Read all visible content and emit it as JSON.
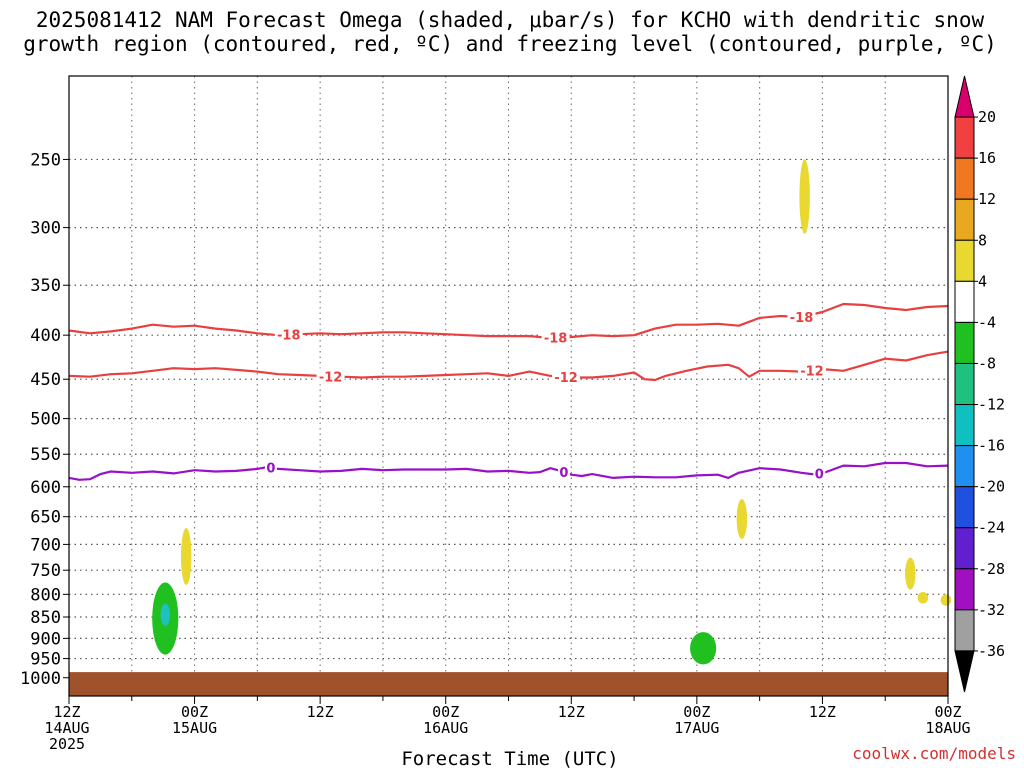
{
  "title": {
    "line1": "2025081412 NAM Forecast Omega (shaded, μbar/s) for KCHO with dendritic snow",
    "line2": "growth region (contoured, red, ºC) and freezing level (contoured, purple, ºC)"
  },
  "credit": "coolwx.com/models",
  "chart_data": {
    "type": "area",
    "title": "2025081412 NAM Forecast Omega (shaded, μbar/s) for KCHO with dendritic snow growth region (contoured, red, ºC) and freezing level (contoured, purple, ºC)",
    "xlabel": "Forecast Time (UTC)",
    "ylabel": "",
    "y_axis": {
      "scale": "log",
      "inverted": true,
      "ylim": [
        200,
        1050
      ],
      "ticks": [
        250,
        300,
        350,
        400,
        450,
        500,
        550,
        600,
        650,
        700,
        750,
        800,
        850,
        900,
        950,
        1000
      ]
    },
    "x_axis": {
      "units": "forecast hours",
      "xlim": [
        0,
        84
      ],
      "ticks": [
        {
          "hour": 0,
          "lines": [
            "12Z",
            "14AUG",
            "2025"
          ]
        },
        {
          "hour": 12,
          "lines": [
            "00Z",
            "15AUG"
          ]
        },
        {
          "hour": 24,
          "lines": [
            "12Z"
          ]
        },
        {
          "hour": 36,
          "lines": [
            "00Z",
            "16AUG"
          ]
        },
        {
          "hour": 48,
          "lines": [
            "12Z"
          ]
        },
        {
          "hour": 60,
          "lines": [
            "00Z",
            "17AUG"
          ]
        },
        {
          "hour": 72,
          "lines": [
            "12Z"
          ]
        },
        {
          "hour": 84,
          "lines": [
            "00Z",
            "18AUG"
          ]
        }
      ],
      "minor_grid_every": 6
    },
    "grid": true,
    "colorbar": {
      "labels": [
        "20",
        "16",
        "12",
        "8",
        "4",
        "-4",
        "-8",
        "-12",
        "-16",
        "-20",
        "-24",
        "-28",
        "-32",
        "-36"
      ],
      "colors": [
        "#d9006e",
        "#f04040",
        "#f07820",
        "#e8a820",
        "#e8d830",
        "#ffffff",
        "#20c020",
        "#20c080",
        "#10c0c0",
        "#2090f0",
        "#2050e0",
        "#6020d0",
        "#a010c0",
        "#a0a0a0",
        "#000000"
      ]
    },
    "contours": [
      {
        "name": "-18",
        "color": "#e84040",
        "labels": [
          {
            "text": "-18",
            "x": 21
          },
          {
            "text": "-18",
            "x": 46.5
          },
          {
            "text": "-18",
            "x": 70
          }
        ],
        "points": [
          [
            0,
            395
          ],
          [
            2,
            398
          ],
          [
            4,
            396
          ],
          [
            6,
            393
          ],
          [
            8,
            389
          ],
          [
            10,
            391
          ],
          [
            12,
            390
          ],
          [
            14,
            393
          ],
          [
            16,
            395
          ],
          [
            18,
            398
          ],
          [
            20,
            400
          ],
          [
            22,
            399
          ],
          [
            24,
            398
          ],
          [
            26,
            399
          ],
          [
            28,
            398
          ],
          [
            30,
            397
          ],
          [
            32,
            397
          ],
          [
            34,
            398
          ],
          [
            36,
            399
          ],
          [
            38,
            400
          ],
          [
            40,
            401
          ],
          [
            42,
            401
          ],
          [
            44,
            401
          ],
          [
            46,
            403
          ],
          [
            48,
            402
          ],
          [
            50,
            400
          ],
          [
            52,
            401
          ],
          [
            54,
            400
          ],
          [
            56,
            393
          ],
          [
            58,
            389
          ],
          [
            60,
            389
          ],
          [
            62,
            388
          ],
          [
            64,
            390
          ],
          [
            65,
            386
          ],
          [
            66,
            382
          ],
          [
            68,
            380
          ],
          [
            70,
            381
          ],
          [
            72,
            376
          ],
          [
            74,
            368
          ],
          [
            76,
            369
          ],
          [
            78,
            372
          ],
          [
            80,
            374
          ],
          [
            82,
            371
          ],
          [
            84,
            370
          ]
        ]
      },
      {
        "name": "-12",
        "color": "#e84040",
        "labels": [
          {
            "text": "-12",
            "x": 25
          },
          {
            "text": "-12",
            "x": 47.5
          },
          {
            "text": "-12",
            "x": 71
          }
        ],
        "points": [
          [
            0,
            446
          ],
          [
            2,
            447
          ],
          [
            4,
            444
          ],
          [
            6,
            443
          ],
          [
            8,
            440
          ],
          [
            10,
            437
          ],
          [
            12,
            438
          ],
          [
            14,
            437
          ],
          [
            16,
            439
          ],
          [
            18,
            441
          ],
          [
            20,
            444
          ],
          [
            22,
            445
          ],
          [
            24,
            446
          ],
          [
            26,
            447
          ],
          [
            28,
            448
          ],
          [
            30,
            447
          ],
          [
            32,
            447
          ],
          [
            34,
            446
          ],
          [
            36,
            445
          ],
          [
            38,
            444
          ],
          [
            40,
            443
          ],
          [
            42,
            446
          ],
          [
            44,
            441
          ],
          [
            46,
            446
          ],
          [
            48,
            448
          ],
          [
            50,
            448
          ],
          [
            52,
            446
          ],
          [
            54,
            442
          ],
          [
            55,
            450
          ],
          [
            56,
            451
          ],
          [
            57,
            446
          ],
          [
            59,
            440
          ],
          [
            61,
            435
          ],
          [
            63,
            433
          ],
          [
            64,
            437
          ],
          [
            65,
            447
          ],
          [
            66,
            440
          ],
          [
            68,
            440
          ],
          [
            70,
            441
          ],
          [
            72,
            438
          ],
          [
            74,
            440
          ],
          [
            76,
            433
          ],
          [
            78,
            426
          ],
          [
            80,
            428
          ],
          [
            82,
            422
          ],
          [
            84,
            418
          ]
        ]
      },
      {
        "name": "0",
        "color": "#9a10c8",
        "labels": [
          {
            "text": "0",
            "x": 19.3
          },
          {
            "text": "0",
            "x": 47.3
          },
          {
            "text": "0",
            "x": 71.7
          }
        ],
        "points": [
          [
            0,
            586
          ],
          [
            1,
            589
          ],
          [
            2,
            588
          ],
          [
            3,
            580
          ],
          [
            4,
            576
          ],
          [
            6,
            578
          ],
          [
            8,
            576
          ],
          [
            10,
            579
          ],
          [
            12,
            574
          ],
          [
            14,
            576
          ],
          [
            16,
            575
          ],
          [
            18,
            572
          ],
          [
            19,
            569
          ],
          [
            20,
            572
          ],
          [
            22,
            574
          ],
          [
            24,
            576
          ],
          [
            26,
            575
          ],
          [
            28,
            572
          ],
          [
            30,
            574
          ],
          [
            32,
            573
          ],
          [
            34,
            573
          ],
          [
            36,
            573
          ],
          [
            38,
            572
          ],
          [
            40,
            576
          ],
          [
            42,
            575
          ],
          [
            44,
            578
          ],
          [
            45,
            577
          ],
          [
            46,
            571
          ],
          [
            47,
            575
          ],
          [
            48,
            581
          ],
          [
            49,
            583
          ],
          [
            50,
            580
          ],
          [
            52,
            586
          ],
          [
            54,
            584
          ],
          [
            56,
            585
          ],
          [
            58,
            585
          ],
          [
            60,
            582
          ],
          [
            62,
            581
          ],
          [
            63,
            586
          ],
          [
            64,
            578
          ],
          [
            66,
            571
          ],
          [
            68,
            573
          ],
          [
            70,
            578
          ],
          [
            71,
            580
          ],
          [
            72,
            579
          ],
          [
            74,
            567
          ],
          [
            76,
            568
          ],
          [
            78,
            563
          ],
          [
            80,
            563
          ],
          [
            82,
            568
          ],
          [
            84,
            567
          ]
        ]
      }
    ],
    "omega_regions": [
      {
        "kind": "yellow",
        "value_range": "4 to 8",
        "hour": 11.2,
        "p_top": 670,
        "p_bot": 780
      },
      {
        "kind": "green",
        "value_range": "-8 to -4",
        "hour": 9.2,
        "p_top": 775,
        "p_bot": 940
      },
      {
        "kind": "cyan",
        "value_range": "-12 to -8",
        "hour": 9.2,
        "p_top": 820,
        "p_bot": 870
      },
      {
        "kind": "yellow",
        "value_range": "4 to 8",
        "hour": 70.3,
        "p_top": 250,
        "p_bot": 305
      },
      {
        "kind": "yellow",
        "value_range": "4 to 8",
        "hour": 64.3,
        "p_top": 620,
        "p_bot": 690
      },
      {
        "kind": "green",
        "value_range": "-8 to -4",
        "hour": 60.6,
        "p_top": 885,
        "p_bot": 965
      },
      {
        "kind": "yellow",
        "value_range": "4 to 8",
        "hour": 80.4,
        "p_top": 725,
        "p_bot": 790
      },
      {
        "kind": "yellow",
        "value_range": "4 to 8",
        "hour": 81.6,
        "p_top": 795,
        "p_bot": 820
      },
      {
        "kind": "yellow",
        "value_range": "4 to 8",
        "hour": 83.8,
        "p_top": 800,
        "p_bot": 825
      }
    ],
    "terrain_surface_pressure": 985
  }
}
